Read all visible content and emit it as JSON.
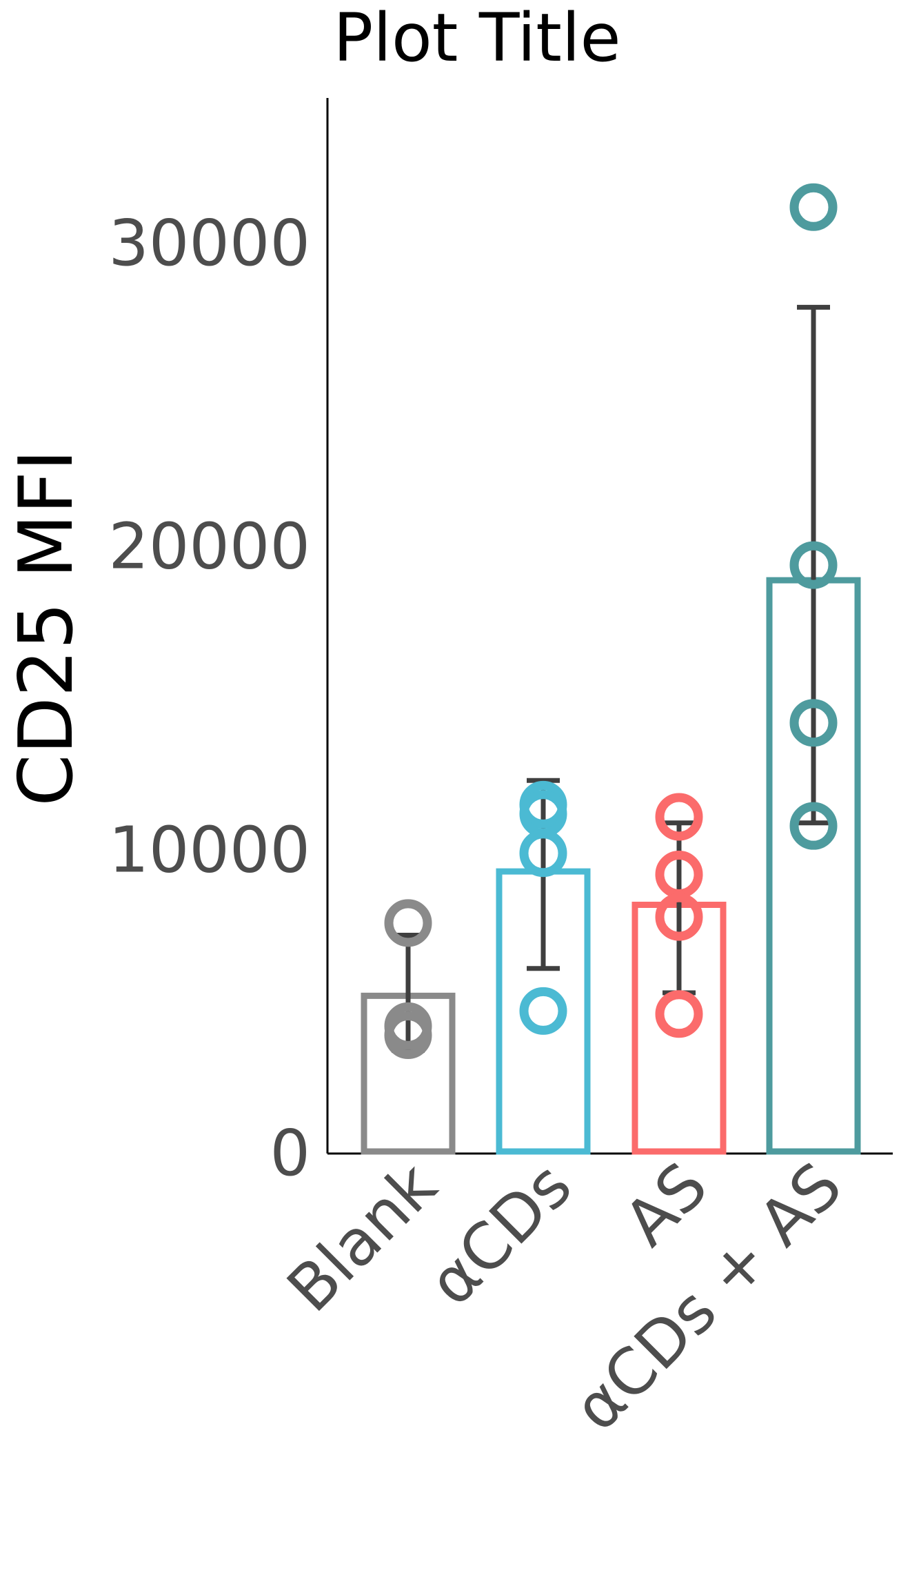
{
  "chart_data": {
    "type": "bar",
    "title": "Plot Title",
    "xlabel": "",
    "ylabel": "CD25 MFI",
    "categories": [
      "Blank",
      "αCDs",
      "AS",
      "αCDs + AS"
    ],
    "ylim": [
      0,
      34800
    ],
    "yticks": [
      0,
      10000,
      20000,
      30000
    ],
    "grid": false,
    "legend": "none",
    "bars": [
      {
        "category": "Blank",
        "mean": 5200,
        "error_low": 3400,
        "error_high": 7200,
        "points": [
          7600,
          4200,
          3900
        ],
        "color": "#8a8a8a"
      },
      {
        "category": "αCDs",
        "mean": 9300,
        "error_low": 6100,
        "error_high": 12300,
        "points": [
          11500,
          11200,
          9900,
          4700
        ],
        "color": "#4bbad3"
      },
      {
        "category": "AS",
        "mean": 8200,
        "error_low": 5300,
        "error_high": 10900,
        "points": [
          11100,
          9200,
          7800,
          4600
        ],
        "color": "#fb6b6b"
      },
      {
        "category": "αCDs + AS",
        "mean": 18900,
        "error_low": 10900,
        "error_high": 27900,
        "points": [
          31200,
          19400,
          14200,
          10800
        ],
        "color": "#4e9b9e"
      }
    ],
    "error_bar_color": "#3f3f3f"
  }
}
